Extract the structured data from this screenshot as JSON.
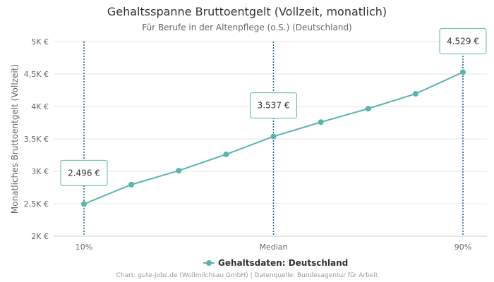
{
  "chart_data": {
    "type": "line",
    "title": "Gehaltsspanne Bruttoentgelt (Vollzeit, monatlich)",
    "subtitle": "Für Berufe in der Altenpflege (o.S.) (Deutschland)",
    "ylabel": "Monatliches Bruttoentgelt (Vollzeit)",
    "xlabel": "",
    "ylim": [
      2000,
      5000
    ],
    "yticks": [
      {
        "value": 2000,
        "label": "2K €"
      },
      {
        "value": 2500,
        "label": "2,5K €"
      },
      {
        "value": 3000,
        "label": "3K €"
      },
      {
        "value": 3500,
        "label": "3,5K €"
      },
      {
        "value": 4000,
        "label": "4K €"
      },
      {
        "value": 4500,
        "label": "4,5K €"
      },
      {
        "value": 5000,
        "label": "5K €"
      }
    ],
    "x": [
      10,
      20,
      30,
      40,
      50,
      60,
      70,
      80,
      90
    ],
    "xlim": [
      10,
      90
    ],
    "xticks": [
      {
        "value": 10,
        "label": "10%"
      },
      {
        "value": 50,
        "label": "Median"
      },
      {
        "value": 90,
        "label": "90%"
      }
    ],
    "series": [
      {
        "name": "Gehaltsdaten: Deutschland",
        "color": "#5ab4ac",
        "values": [
          2496,
          2795,
          3010,
          3262,
          3537,
          3758,
          3966,
          4195,
          4529
        ]
      }
    ],
    "annotations": [
      {
        "x": 10,
        "label": "2.496 €"
      },
      {
        "x": 50,
        "label": "3.537 €"
      },
      {
        "x": 90,
        "label": "4.529 €"
      }
    ],
    "legend": "bottom-center",
    "grid": true
  },
  "credits": "Chart: gute-jobs.de (Wollmilchsau GmbH) | Datenquelle: Bundesagentur für Arbeit",
  "colors": {
    "line": "#5ab4ac",
    "marker_line": "#1a5f7a",
    "grid": "#e6e6e6"
  }
}
